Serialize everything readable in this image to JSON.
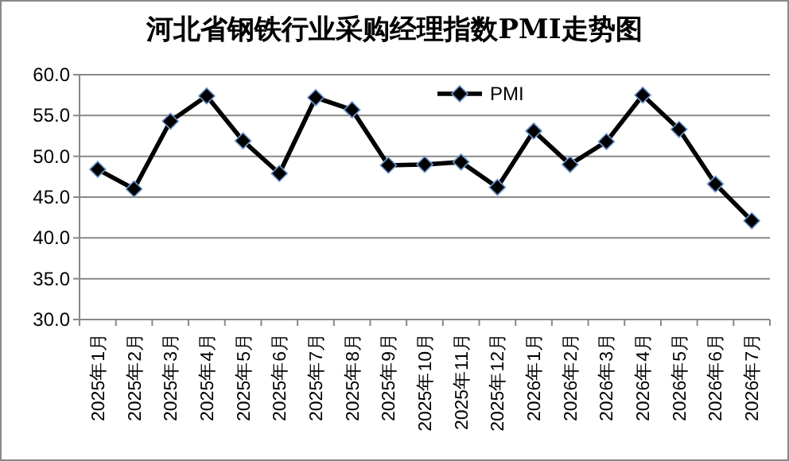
{
  "chart_data": {
    "type": "line",
    "title": "河北省钢铁行业采购经理指数PMI走势图",
    "categories": [
      "2025年1月",
      "2025年2月",
      "2025年3月",
      "2025年4月",
      "2025年5月",
      "2025年6月",
      "2025年7月",
      "2025年8月",
      "2025年9月",
      "2025年10月",
      "2025年11月",
      "2025年12月",
      "2026年1月",
      "2026年2月",
      "2026年3月",
      "2026年4月",
      "2026年5月",
      "2026年6月",
      "2026年7月"
    ],
    "series": [
      {
        "name": "PMI",
        "color": "#000000",
        "values": [
          48.4,
          46.0,
          54.3,
          57.4,
          51.9,
          47.9,
          57.2,
          55.7,
          48.9,
          49.0,
          49.3,
          46.2,
          53.1,
          49.0,
          51.8,
          57.5,
          53.3,
          46.6,
          42.1
        ]
      }
    ],
    "ylim": [
      30,
      60
    ],
    "yticks": [
      {
        "value": 30,
        "label": "30.0"
      },
      {
        "value": 35,
        "label": "35.0"
      },
      {
        "value": 40,
        "label": "40.0"
      },
      {
        "value": 45,
        "label": "45.0"
      },
      {
        "value": 50,
        "label": "50.0"
      },
      {
        "value": 55,
        "label": "55.0"
      },
      {
        "value": 60,
        "label": "60.0"
      }
    ],
    "grid": "y",
    "legend": "top",
    "marker": "diamond",
    "line_style": "solid"
  }
}
